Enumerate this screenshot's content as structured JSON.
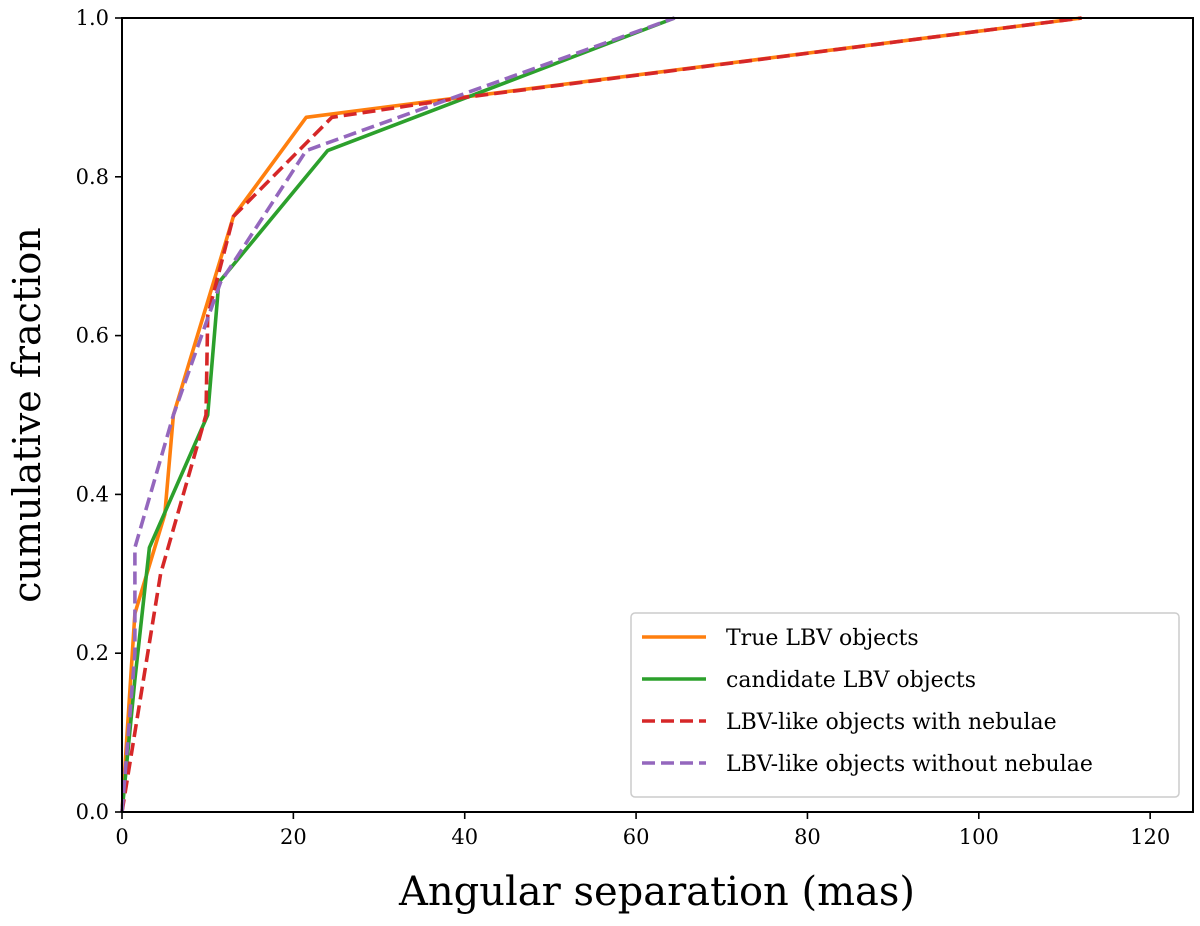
{
  "chart_data": {
    "type": "line",
    "title": "",
    "xlabel": "Angular separation (mas)",
    "ylabel": "cumulative fraction",
    "xlim": [
      0,
      125
    ],
    "ylim": [
      0,
      1.0
    ],
    "xticks": [
      0,
      20,
      40,
      60,
      80,
      100,
      120
    ],
    "yticks": [
      0.0,
      0.2,
      0.4,
      0.6,
      0.8,
      1.0
    ],
    "xtick_labels": [
      "0",
      "20",
      "40",
      "60",
      "80",
      "100",
      "120"
    ],
    "ytick_labels": [
      "0.0",
      "0.2",
      "0.4",
      "0.6",
      "0.8",
      "1.0"
    ],
    "grid": false,
    "legend_position": "lower-right",
    "series": [
      {
        "name": "True LBV objects",
        "color": "#ff7f0e",
        "style": "solid",
        "x": [
          0,
          1.5,
          5.0,
          6.0,
          13.0,
          21.5,
          112
        ],
        "y": [
          0,
          0.25,
          0.375,
          0.5,
          0.75,
          0.875,
          1.0
        ]
      },
      {
        "name": "candidate LBV objects",
        "color": "#2ca02c",
        "style": "solid",
        "x": [
          0,
          1.5,
          3.2,
          10.0,
          11.3,
          24.0,
          64.5
        ],
        "y": [
          0,
          0.167,
          0.333,
          0.5,
          0.667,
          0.833,
          1.0
        ]
      },
      {
        "name": "LBV-like objects with nebulae",
        "color": "#d62728",
        "style": "dashed",
        "x": [
          0,
          4.5,
          9.8,
          10.0,
          13.0,
          24.5,
          40.0,
          112
        ],
        "y": [
          0,
          0.3,
          0.5,
          0.625,
          0.75,
          0.875,
          0.9,
          1.0
        ]
      },
      {
        "name": "LBV-like objects without nebulae",
        "color": "#9467bd",
        "style": "dashed",
        "x": [
          0,
          1.5,
          1.5,
          6.0,
          11.5,
          21.5,
          64.5
        ],
        "y": [
          0,
          0.2,
          0.333,
          0.5,
          0.667,
          0.833,
          1.0
        ]
      }
    ]
  }
}
